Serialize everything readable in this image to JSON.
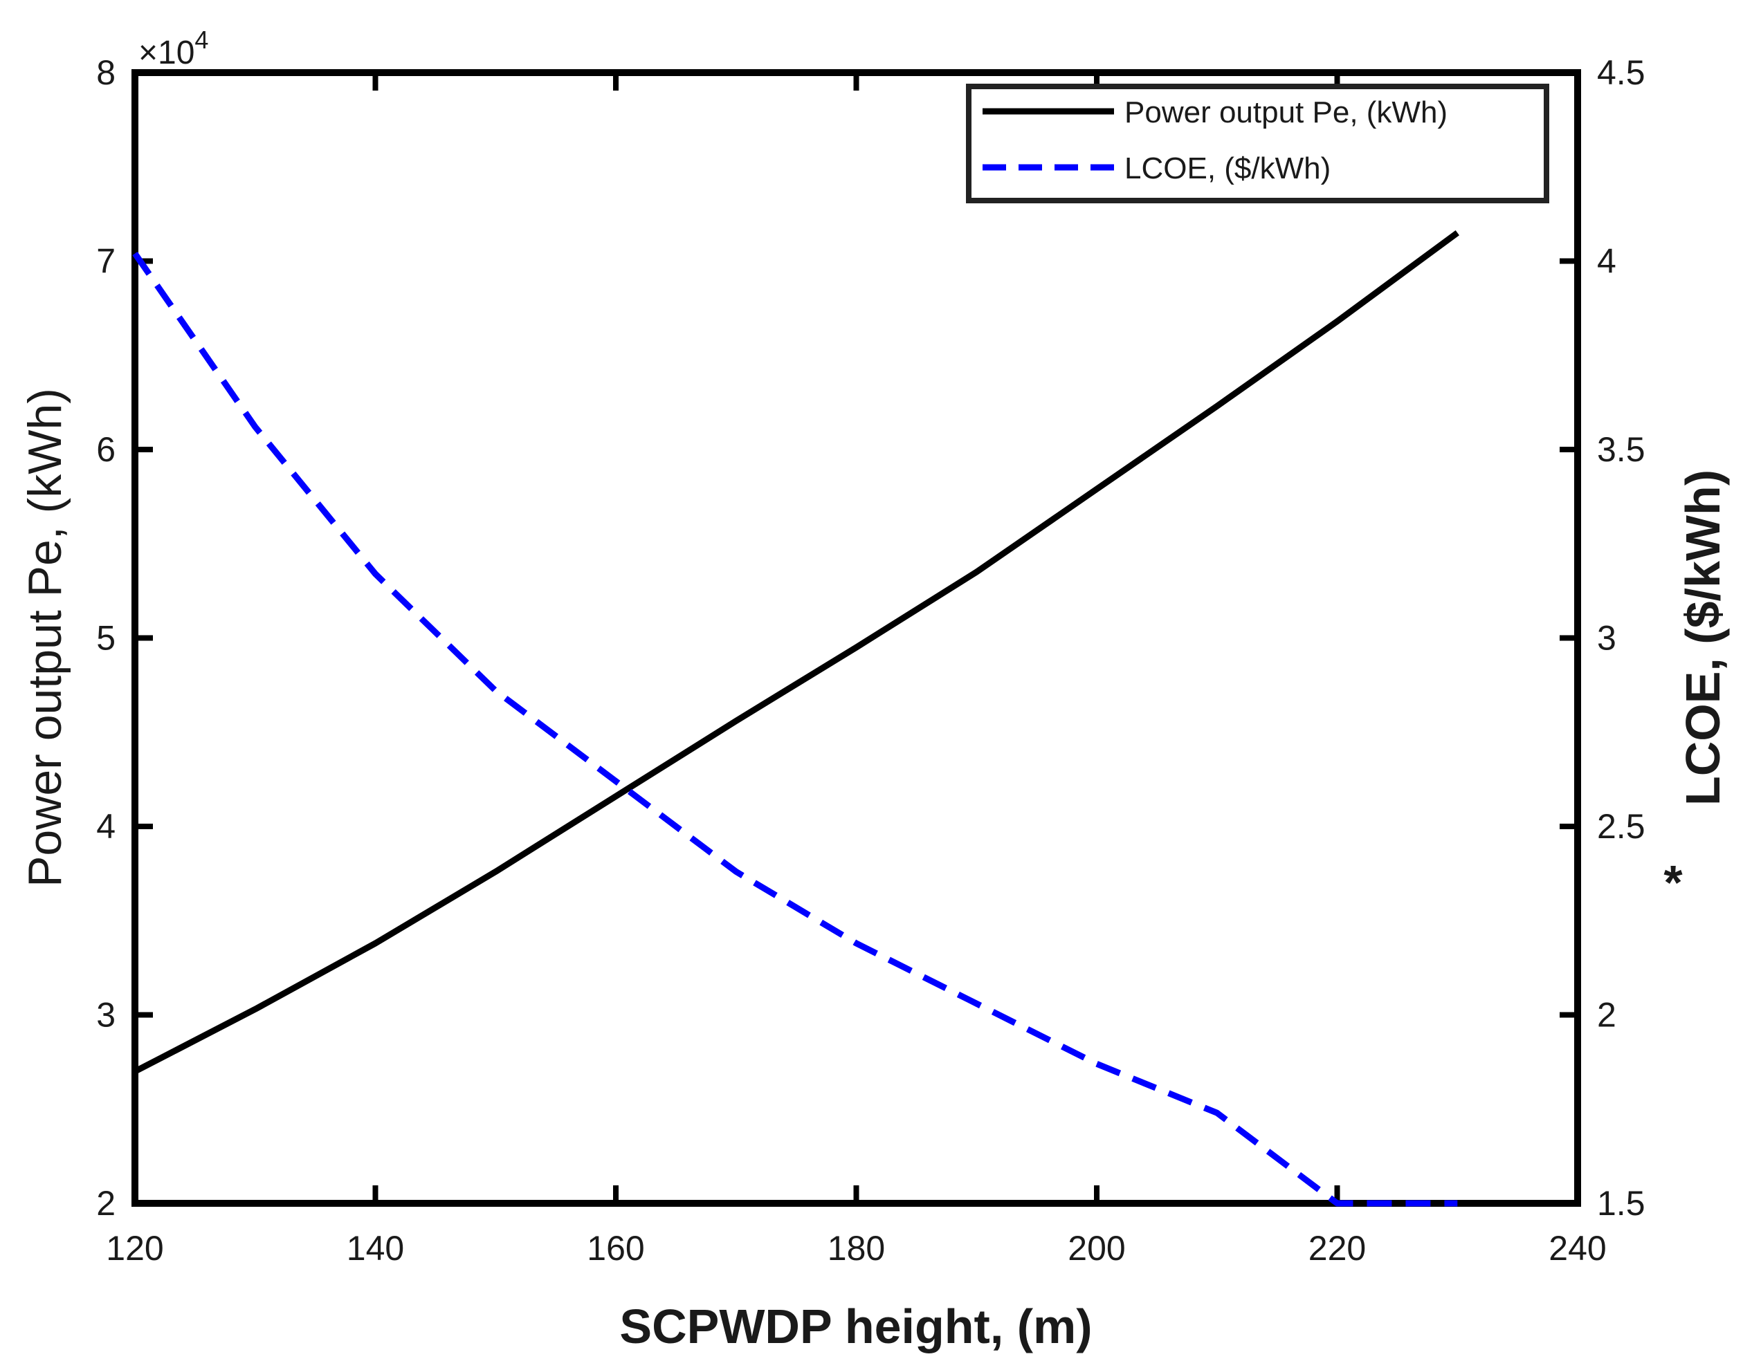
{
  "chart_data": {
    "type": "line",
    "xlabel": "SCPWDP height, (m)",
    "ylabel_left": "Power output Pe, (kWh)",
    "ylabel_right": "LCOE, ($/kWh)",
    "ylabel_right_marker": "*",
    "xlim": [
      120,
      240
    ],
    "ylim_left": [
      20000,
      80000
    ],
    "ylim_right": [
      1.5,
      4.5
    ],
    "left_exponent": {
      "base": "×10",
      "power": "4"
    },
    "x_ticks": [
      120,
      140,
      160,
      180,
      200,
      220,
      240
    ],
    "x_tick_labels": [
      "120",
      "140",
      "160",
      "180",
      "200",
      "220",
      "240"
    ],
    "y_left_ticks": [
      20000,
      30000,
      40000,
      50000,
      60000,
      70000,
      80000
    ],
    "y_left_tick_labels": [
      "2",
      "3",
      "4",
      "5",
      "6",
      "7",
      "8"
    ],
    "y_right_ticks": [
      1.5,
      2,
      2.5,
      3,
      3.5,
      4,
      4.5
    ],
    "y_right_tick_labels": [
      "1.5",
      "2",
      "2.5",
      "3",
      "3.5",
      "4",
      "4.5"
    ],
    "grid": false,
    "legend_position": "top-right",
    "series": [
      {
        "name": "Power output Pe, (kWh)",
        "axis": "left",
        "color": "#000000",
        "style": "solid",
        "x": [
          120,
          130,
          140,
          150,
          160,
          170,
          180,
          190,
          200,
          210,
          220,
          230
        ],
        "values": [
          27000,
          30300,
          33800,
          37600,
          41600,
          45600,
          49500,
          53500,
          57900,
          62300,
          66800,
          71500
        ]
      },
      {
        "name": "LCOE, ($/kWh)",
        "axis": "right",
        "color": "#0000ff",
        "style": "dashed",
        "x": [
          120,
          130,
          140,
          150,
          160,
          170,
          180,
          190,
          200,
          210,
          220,
          230
        ],
        "values": [
          4.02,
          3.56,
          3.17,
          2.86,
          2.62,
          2.38,
          2.19,
          2.03,
          1.87,
          1.74,
          1.5,
          1.5
        ]
      }
    ]
  }
}
